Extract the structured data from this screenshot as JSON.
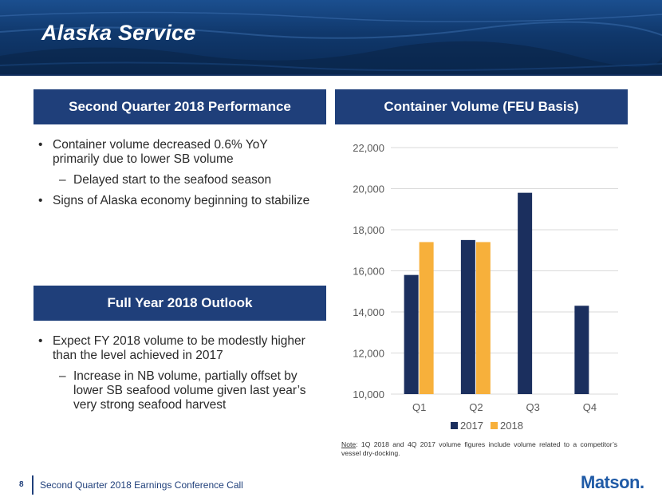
{
  "slide": {
    "title": "Alaska Service",
    "footer_page": "8",
    "footer_text": "Second Quarter 2018 Earnings Conference Call",
    "logo_text": "Matson."
  },
  "left_top": {
    "banner": "Second Quarter 2018 Performance",
    "bullets": [
      {
        "text": "Container volume decreased 0.6% YoY primarily due to lower SB volume",
        "sub": [
          "Delayed start to the seafood season"
        ]
      },
      {
        "text": "Signs of Alaska economy beginning to stabilize",
        "sub": []
      }
    ]
  },
  "left_bottom": {
    "banner": "Full Year 2018 Outlook",
    "bullets": [
      {
        "text": "Expect FY 2018 volume to be modestly higher than the level achieved in 2017",
        "sub": [
          "Increase in NB volume, partially offset by lower SB seafood volume given last year’s very strong seafood harvest"
        ]
      }
    ]
  },
  "right": {
    "banner": "Container Volume (FEU Basis)",
    "note_label": "Note",
    "note_text": ": 1Q 2018 and 4Q 2017 volume figures include volume related to a competitor’s vessel dry-docking."
  },
  "chart_data": {
    "type": "bar",
    "title": "Container Volume (FEU Basis)",
    "categories": [
      "Q1",
      "Q2",
      "Q3",
      "Q4"
    ],
    "series": [
      {
        "name": "2017",
        "color": "#1b2f5e",
        "values": [
          15800,
          17500,
          19800,
          14300
        ]
      },
      {
        "name": "2018",
        "color": "#f7b03b",
        "values": [
          17400,
          17400,
          null,
          null
        ]
      }
    ],
    "ylim": [
      10000,
      22000
    ],
    "yticks": [
      10000,
      12000,
      14000,
      16000,
      18000,
      20000,
      22000
    ],
    "ytick_labels": [
      "10,000",
      "12,000",
      "14,000",
      "16,000",
      "18,000",
      "20,000",
      "22,000"
    ],
    "xlabel": "",
    "ylabel": "",
    "grid": true,
    "legend": "bottom"
  },
  "colors": {
    "banner": "#1f3f7a",
    "bar_2017": "#1b2f5e",
    "bar_2018": "#f7b03b",
    "grid": "#d9d9d9",
    "axis_text": "#595959"
  }
}
